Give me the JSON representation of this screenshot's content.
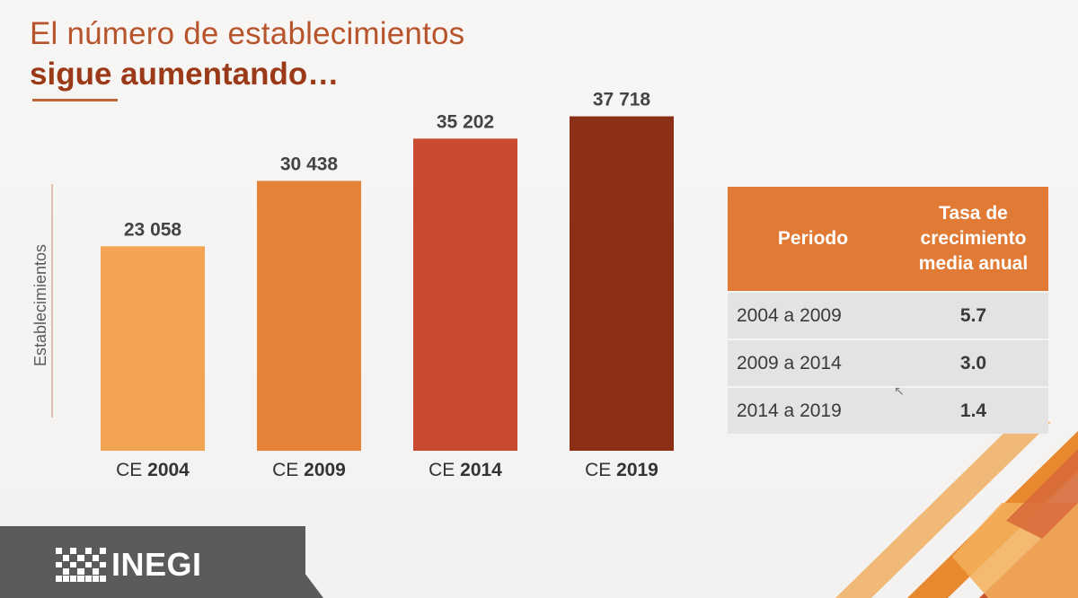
{
  "title": {
    "line1": "El número de establecimientos",
    "line2": "sigue aumentando…"
  },
  "chart_data": {
    "type": "bar",
    "ylabel": "Establecimientos",
    "ylim": [
      0,
      40000
    ],
    "categories": [
      {
        "prefix": "CE ",
        "year": "2004"
      },
      {
        "prefix": "CE ",
        "year": "2009"
      },
      {
        "prefix": "CE ",
        "year": "2014"
      },
      {
        "prefix": "CE ",
        "year": "2019"
      }
    ],
    "values": [
      23058,
      30438,
      35202,
      37718
    ],
    "value_labels": [
      "23 058",
      "30 438",
      "35 202",
      "37 718"
    ],
    "colors": [
      "#f2a452",
      "#e58338",
      "#c84b2f",
      "#8c2f17"
    ]
  },
  "table": {
    "headers": [
      "Periodo",
      "Tasa de\ncrecimiento\nmedia anual"
    ],
    "header_color": "#e07a34",
    "rows": [
      {
        "period": "2004 a 2009",
        "rate": "5.7"
      },
      {
        "period": "2009 a 2014",
        "rate": "3.0"
      },
      {
        "period": "2014 a 2019",
        "rate": "1.4"
      }
    ]
  },
  "footer": {
    "logo_text": "INEGI"
  }
}
